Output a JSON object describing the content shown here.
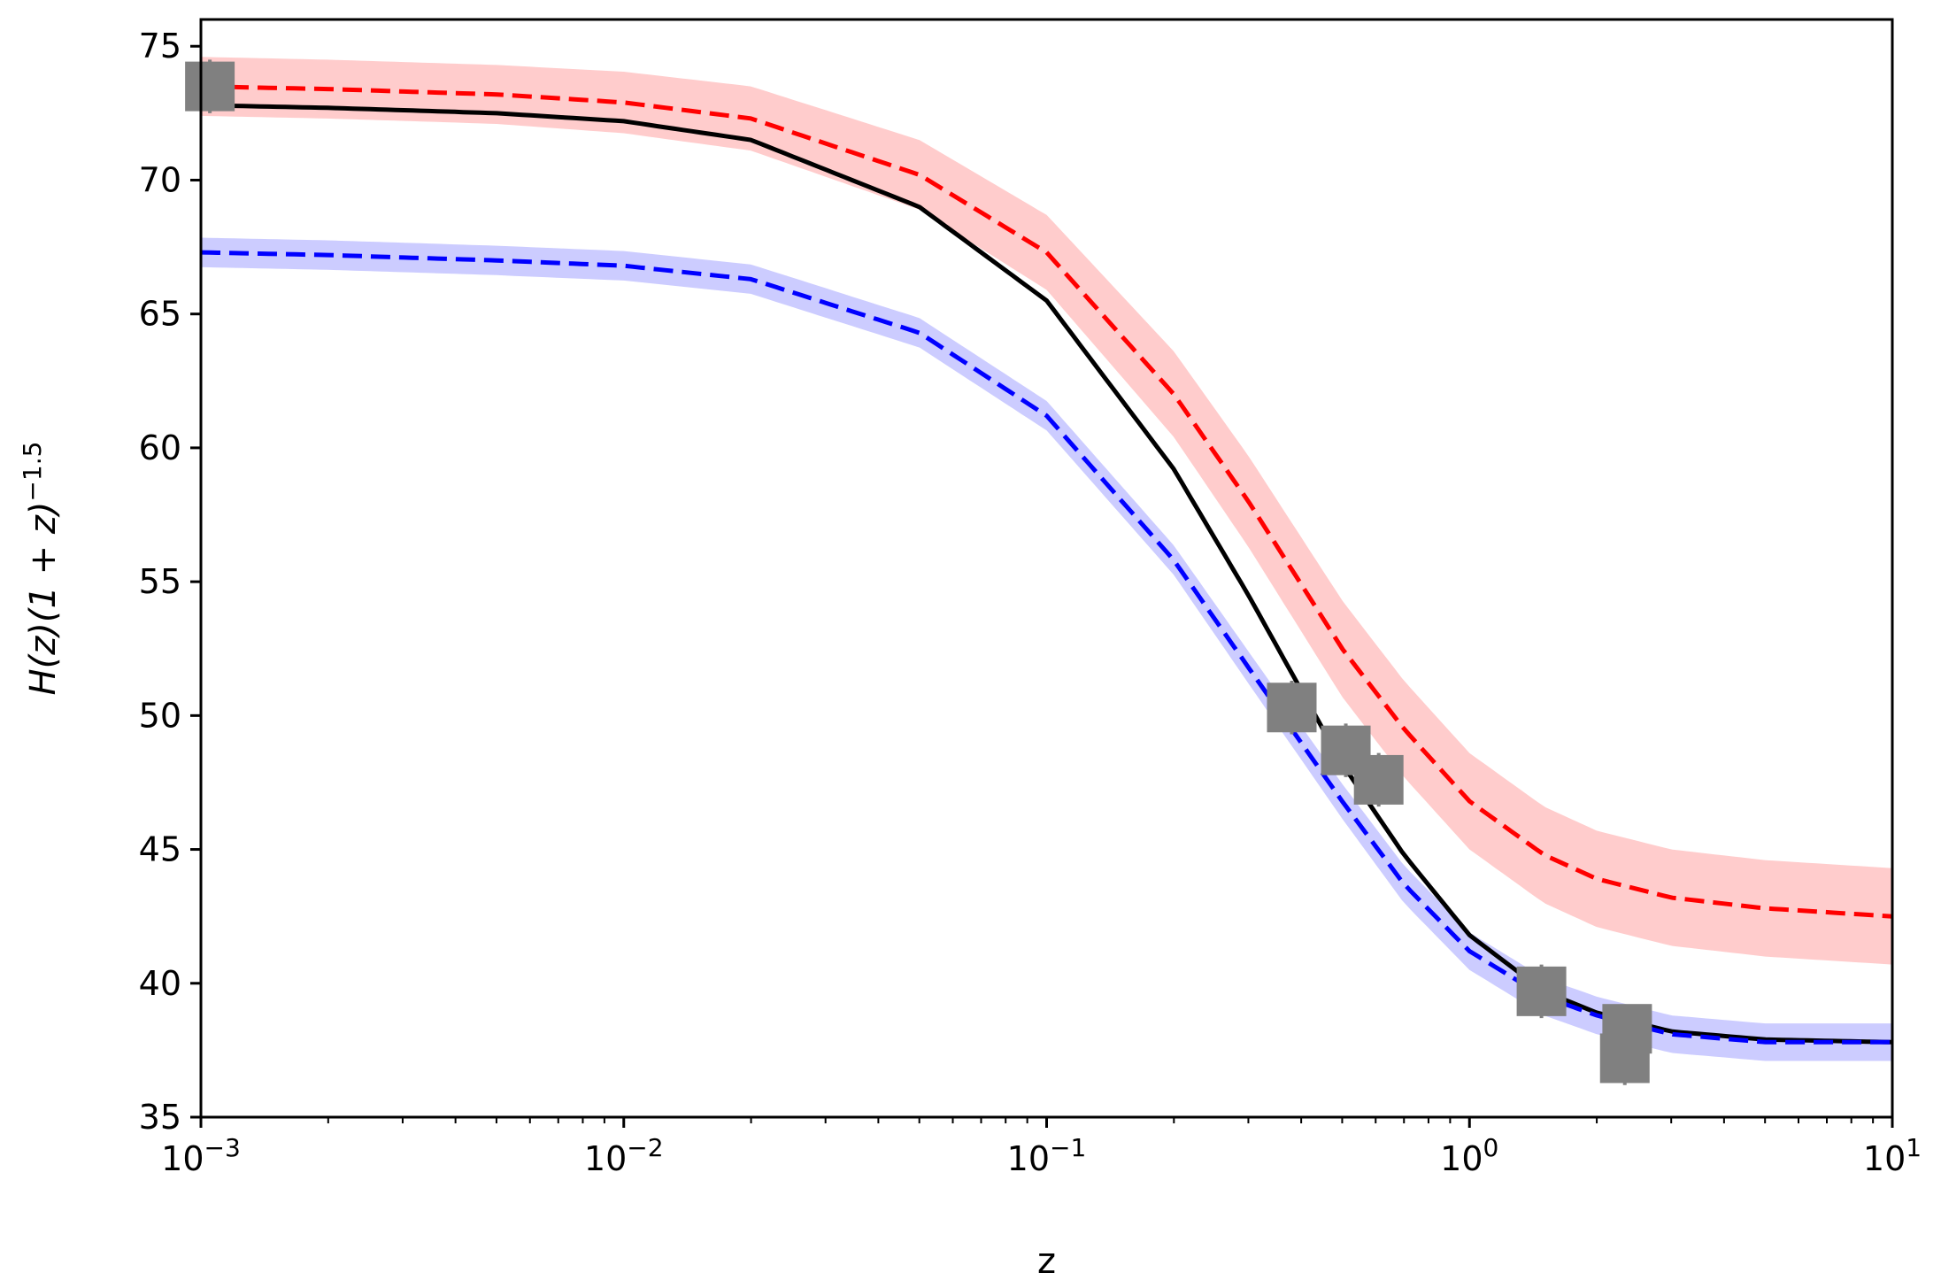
{
  "chart_data": {
    "type": "line",
    "title": "",
    "xlabel": "z",
    "ylabel": "H(z)(1 + z)^-1.5",
    "ylabel_parts": {
      "main": "H(z)(1 + z)",
      "exp": "−1.5"
    },
    "xscale": "log",
    "xlim": [
      0.001,
      10
    ],
    "ylim": [
      35,
      76
    ],
    "grid": false,
    "legend": "none",
    "x_ticks": [
      {
        "value": 0.001,
        "base": "10",
        "exp": "−3"
      },
      {
        "value": 0.01,
        "base": "10",
        "exp": "−2"
      },
      {
        "value": 0.1,
        "base": "10",
        "exp": "−1"
      },
      {
        "value": 1,
        "base": "10",
        "exp": "0"
      },
      {
        "value": 10,
        "base": "10",
        "exp": "1"
      }
    ],
    "y_ticks": [
      35,
      40,
      45,
      50,
      55,
      60,
      65,
      70,
      75
    ],
    "series": [
      {
        "name": "black solid model",
        "style": "solid",
        "color": "#000000",
        "z": [
          0.001,
          0.002,
          0.005,
          0.01,
          0.02,
          0.05,
          0.1,
          0.2,
          0.3,
          0.5,
          0.7,
          1.0,
          1.5,
          2,
          3,
          5,
          10
        ],
        "values": [
          72.8,
          72.7,
          72.5,
          72.2,
          71.5,
          69.0,
          65.5,
          59.2,
          54.5,
          48.2,
          44.8,
          41.8,
          39.7,
          38.9,
          38.2,
          37.9,
          37.8
        ]
      },
      {
        "name": "red dashed model",
        "style": "dashed",
        "color": "#ff0000",
        "band_color": "#ffcccc",
        "z": [
          0.001,
          0.002,
          0.005,
          0.01,
          0.02,
          0.05,
          0.1,
          0.2,
          0.3,
          0.5,
          0.7,
          1.0,
          1.5,
          2,
          3,
          5,
          10
        ],
        "values": [
          73.5,
          73.4,
          73.2,
          72.9,
          72.3,
          70.2,
          67.3,
          62.0,
          58.0,
          52.5,
          49.5,
          46.8,
          44.8,
          43.9,
          43.2,
          42.8,
          42.5
        ],
        "band": [
          1.1,
          1.1,
          1.1,
          1.15,
          1.2,
          1.3,
          1.4,
          1.6,
          1.7,
          1.8,
          1.8,
          1.8,
          1.8,
          1.8,
          1.8,
          1.8,
          1.8
        ]
      },
      {
        "name": "blue dashed model",
        "style": "dashed",
        "color": "#0000ff",
        "band_color": "#ccccff",
        "z": [
          0.001,
          0.002,
          0.005,
          0.01,
          0.02,
          0.05,
          0.1,
          0.2,
          0.3,
          0.5,
          0.7,
          1.0,
          1.5,
          2,
          3,
          5,
          10
        ],
        "values": [
          67.3,
          67.2,
          67.0,
          66.8,
          66.3,
          64.3,
          61.2,
          55.8,
          51.8,
          46.8,
          43.7,
          41.2,
          39.5,
          38.8,
          38.1,
          37.8,
          37.8
        ],
        "band": [
          0.55,
          0.55,
          0.55,
          0.55,
          0.55,
          0.55,
          0.55,
          0.55,
          0.6,
          0.65,
          0.7,
          0.7,
          0.7,
          0.7,
          0.7,
          0.7,
          0.7
        ]
      }
    ],
    "data_points": [
      {
        "z": 0.00105,
        "y": 73.5,
        "yerr": 1.0
      },
      {
        "z": 0.38,
        "y": 50.3,
        "yerr": 1.0
      },
      {
        "z": 0.51,
        "y": 48.7,
        "yerr": 1.0
      },
      {
        "z": 0.61,
        "y": 47.6,
        "yerr": 1.0
      },
      {
        "z": 1.48,
        "y": 39.7,
        "yerr": 1.0
      },
      {
        "z": 2.33,
        "y": 37.2,
        "yerr": 1.0
      },
      {
        "z": 2.36,
        "y": 38.3,
        "yerr": 0.8
      }
    ],
    "marker_color": "#808080"
  }
}
